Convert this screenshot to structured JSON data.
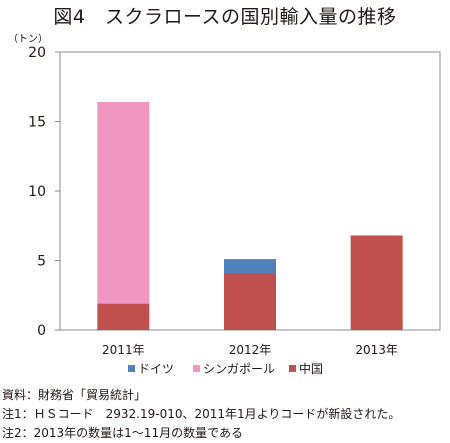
{
  "title": "図4　スクラロースの国別輸入量の推移",
  "unit_label": "（トン）",
  "chart_data": {
    "type": "bar",
    "stacked": true,
    "categories": [
      "2011年",
      "2012年",
      "2013年"
    ],
    "series": [
      {
        "name": "中国",
        "color": "#c0504d",
        "values": [
          1.9,
          4.1,
          6.8
        ]
      },
      {
        "name": "シンガポール",
        "color": "#f096c0",
        "values": [
          14.5,
          0,
          0
        ]
      },
      {
        "name": "ドイツ",
        "color": "#4f81bd",
        "values": [
          0,
          1.0,
          0
        ]
      }
    ],
    "legend_order": [
      "ドイツ",
      "シンガポール",
      "中国"
    ],
    "ylim": [
      0,
      20
    ],
    "yticks": [
      0,
      5,
      10,
      15,
      20
    ],
    "grid": false,
    "legend_position": "bottom"
  },
  "notes": [
    "資料：財務省「貿易統計」",
    "注1：ＨＳコード　2932.19-010、2011年1月よりコードが新設された。",
    "注2：2013年の数量は1～11月の数量である"
  ]
}
